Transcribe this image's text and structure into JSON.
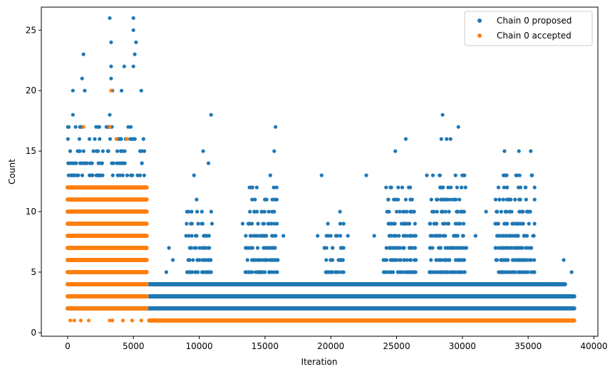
{
  "chart_data": {
    "type": "scatter",
    "xlabel": "Iteration",
    "ylabel": "Count",
    "xlim": [
      -2000,
      40300
    ],
    "ylim": [
      -0.3,
      26.9
    ],
    "xticks": [
      0,
      5000,
      10000,
      15000,
      20000,
      25000,
      30000,
      35000,
      40000
    ],
    "yticks": [
      0,
      5,
      10,
      15,
      20,
      25
    ],
    "grid": false,
    "legend_position": "top-right",
    "colors": {
      "proposed": "#1f77b4",
      "accepted": "#ff7f0e"
    },
    "series": [
      {
        "name": "Chain 0 proposed",
        "color": "#1f77b4",
        "bands": [
          {
            "y": 2,
            "x_from": 0,
            "x_to": 38500
          },
          {
            "y": 3,
            "x_from": 6200,
            "x_to": 38500
          },
          {
            "y": 4,
            "x_from": 6200,
            "x_to": 37800
          }
        ],
        "points": [
          [
            3200,
            26
          ],
          [
            5000,
            26
          ],
          [
            5000,
            25
          ],
          [
            3300,
            24
          ],
          [
            5200,
            24
          ],
          [
            1200,
            23
          ],
          [
            5100,
            23
          ],
          [
            4300,
            22
          ],
          [
            3300,
            22
          ],
          [
            5000,
            22
          ],
          [
            1100,
            21
          ],
          [
            3300,
            21
          ],
          [
            1300,
            20
          ],
          [
            3400,
            20
          ],
          [
            4100,
            20
          ],
          [
            400,
            20
          ],
          [
            5600,
            20
          ],
          [
            10900,
            18
          ],
          [
            28500,
            18
          ],
          [
            400,
            18
          ],
          [
            3200,
            18
          ],
          [
            15800,
            17
          ],
          [
            29700,
            17
          ],
          [
            1000,
            17
          ],
          [
            4800,
            17
          ],
          [
            10300,
            15
          ],
          [
            15700,
            15
          ],
          [
            24900,
            15
          ],
          [
            33200,
            15
          ],
          [
            34300,
            15
          ],
          [
            35200,
            15
          ],
          [
            28800,
            16
          ],
          [
            25700,
            16
          ],
          [
            28400,
            16
          ],
          [
            29100,
            16
          ],
          [
            9600,
            13
          ],
          [
            10700,
            14
          ],
          [
            15400,
            13
          ],
          [
            19300,
            13
          ],
          [
            22700,
            13
          ],
          [
            27300,
            13
          ],
          [
            35300,
            13
          ],
          [
            29600,
            12
          ],
          [
            24600,
            12
          ],
          [
            33400,
            12
          ],
          [
            9800,
            11
          ],
          [
            10200,
            10
          ],
          [
            14200,
            10
          ],
          [
            20700,
            10
          ],
          [
            25500,
            10
          ],
          [
            28100,
            11
          ],
          [
            31800,
            10
          ],
          [
            34400,
            11
          ],
          [
            13300,
            9
          ],
          [
            16400,
            8
          ],
          [
            19000,
            8
          ],
          [
            21300,
            8
          ],
          [
            23300,
            8
          ],
          [
            26400,
            9
          ],
          [
            30300,
            7
          ],
          [
            31000,
            8
          ],
          [
            32500,
            9
          ],
          [
            36800,
            4
          ],
          [
            37700,
            6
          ],
          [
            8000,
            6
          ],
          [
            7700,
            7
          ],
          [
            7500,
            5
          ],
          [
            38300,
            5
          ]
        ],
        "dense_zones": [
          {
            "x_from": 0,
            "x_to": 6000,
            "y_max": 17
          },
          {
            "x_from": 9000,
            "x_to": 11000,
            "y_max": 10
          },
          {
            "x_from": 13500,
            "x_to": 16000,
            "y_max": 12
          },
          {
            "x_from": 19500,
            "x_to": 21000,
            "y_max": 9
          },
          {
            "x_from": 24000,
            "x_to": 26500,
            "y_max": 12
          },
          {
            "x_from": 27500,
            "x_to": 30300,
            "y_max": 13
          },
          {
            "x_from": 32500,
            "x_to": 35500,
            "y_max": 13
          }
        ]
      },
      {
        "name": "Chain 0 accepted",
        "color": "#ff7f0e",
        "bands": [
          {
            "y": 1,
            "x_from": 6200,
            "x_to": 38500
          }
        ],
        "points": [
          [
            3300,
            20
          ],
          [
            1200,
            17
          ],
          [
            3200,
            17
          ],
          [
            4500,
            16
          ],
          [
            3700,
            16
          ],
          [
            200,
            1
          ],
          [
            500,
            1
          ],
          [
            1000,
            1
          ],
          [
            1600,
            1
          ],
          [
            3200,
            1
          ],
          [
            3400,
            1
          ],
          [
            4200,
            1
          ],
          [
            4900,
            1
          ],
          [
            5600,
            1
          ]
        ],
        "dense_zones": [
          {
            "x_from": 0,
            "x_to": 6000,
            "y_min": 2,
            "y_max": 12
          }
        ]
      }
    ]
  }
}
